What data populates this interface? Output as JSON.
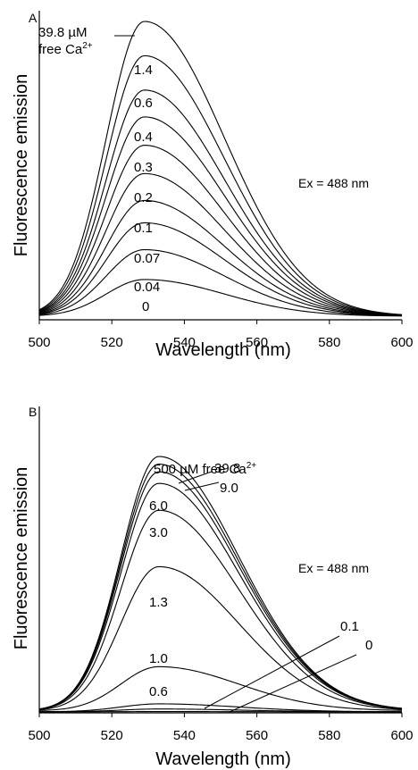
{
  "chart_data": [
    {
      "panel": "A",
      "type": "line",
      "xlabel": "Wavelength (nm)",
      "ylabel": "Fluorescence emission",
      "xlim": [
        500,
        600
      ],
      "xticks": [
        "500",
        "520",
        "540",
        "560",
        "580",
        "600"
      ],
      "yticks": "none",
      "annotation": "Ex = 488 nm",
      "peak_x": 529,
      "ylim": [
        0,
        1.0
      ],
      "series": [
        {
          "label": "39.8 µM",
          "label2": "free Ca",
          "label2_sup": "2+",
          "peak": 1.0
        },
        {
          "label": "1.4",
          "peak": 0.885
        },
        {
          "label": "0.6",
          "peak": 0.77
        },
        {
          "label": "0.4",
          "peak": 0.68
        },
        {
          "label": "0.3",
          "peak": 0.585
        },
        {
          "label": "0.2",
          "peak": 0.49
        },
        {
          "label": "0.1",
          "peak": 0.4
        },
        {
          "label": "0.07",
          "peak": 0.325
        },
        {
          "label": "0.04",
          "peak": 0.235
        },
        {
          "label": "0",
          "peak": 0.135
        }
      ]
    },
    {
      "panel": "B",
      "type": "line",
      "xlabel": "Wavelength (nm)",
      "ylabel": "Fluorescence emission",
      "xlim": [
        500,
        600
      ],
      "xticks": [
        "500",
        "520",
        "540",
        "560",
        "580",
        "600"
      ],
      "yticks": "none",
      "annotation": "Ex = 488 nm",
      "peak_x": 533,
      "ylim": [
        0,
        1.0
      ],
      "series": [
        {
          "label": "500 µM free Ca",
          "label_sup": "2+",
          "peak": 1.0
        },
        {
          "label": "39.8",
          "peak": 0.97
        },
        {
          "label": "9.0",
          "peak": 0.94
        },
        {
          "label": "6.0",
          "peak": 0.895
        },
        {
          "label": "3.0",
          "peak": 0.79
        },
        {
          "label": "1.3",
          "peak": 0.57
        },
        {
          "label": "1.0",
          "peak": 0.18
        },
        {
          "label": "0.6",
          "peak": 0.035
        },
        {
          "label": "0.1",
          "peak": 0.015
        },
        {
          "label": "0",
          "peak": 0.005
        }
      ]
    }
  ]
}
